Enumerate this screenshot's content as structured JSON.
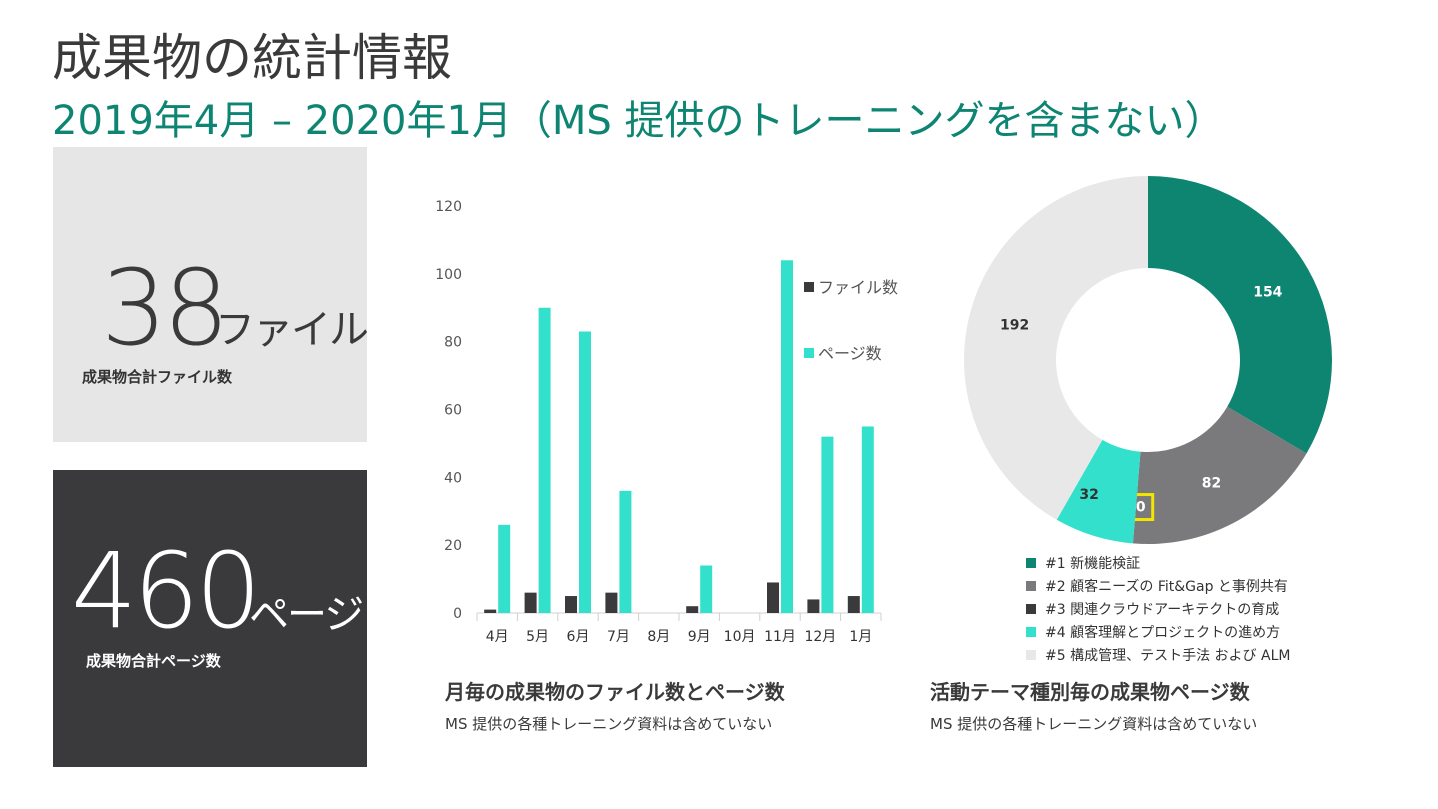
{
  "title": "成果物の統計情報",
  "subtitle": "2019年4月 – 2020年1月（MS 提供のトレーニングを含まない）",
  "kpi_files": {
    "value": "38",
    "unit": "ファイル",
    "label": "成果物合計ファイル数"
  },
  "kpi_pages": {
    "value": "460",
    "unit": "ページ",
    "label": "成果物合計ページ数"
  },
  "colors": {
    "files": "#3a393c",
    "pages": "#33e0cc",
    "theme1": "#0d8571",
    "theme2": "#7a797b",
    "theme3": "#3a393c",
    "theme4": "#33e0cc",
    "theme5": "#e8e8e8",
    "highlight": "#f2e600"
  },
  "bar_section": {
    "title": "月毎の成果物のファイル数とページ数",
    "note": "MS 提供の各種トレーニング資料は含めていない"
  },
  "donut_section": {
    "title": "活動テーマ種別毎の成果物ページ数",
    "note": "MS 提供の各種トレーニング資料は含めていない"
  },
  "chart_data": [
    {
      "type": "bar",
      "title": "月毎の成果物のファイル数とページ数",
      "categories": [
        "4月",
        "5月",
        "6月",
        "7月",
        "8月",
        "9月",
        "10月",
        "11月",
        "12月",
        "1月"
      ],
      "series": [
        {
          "name": "ファイル数",
          "values": [
            1,
            6,
            5,
            6,
            0,
            2,
            0,
            9,
            4,
            5
          ]
        },
        {
          "name": "ページ数",
          "values": [
            26,
            90,
            83,
            36,
            0,
            14,
            0,
            104,
            52,
            55
          ]
        }
      ],
      "ylim": [
        0,
        120
      ],
      "yticks": [
        0,
        20,
        40,
        60,
        80,
        100,
        120
      ],
      "legend": "right",
      "grid": false
    },
    {
      "type": "pie",
      "title": "活動テーマ種別毎の成果物ページ数",
      "donut": true,
      "categories": [
        "#1 新機能検証",
        "#2 顧客ニーズの Fit&Gap と事例共有",
        "#3 関連クラウドアーキテクトの育成",
        "#4 顧客理解とプロジェクトの進め方",
        "#5 構成管理、テスト手法 および ALM"
      ],
      "values": [
        154,
        82,
        0,
        32,
        192
      ],
      "legend": "bottom",
      "highlighted_label": "0"
    }
  ]
}
